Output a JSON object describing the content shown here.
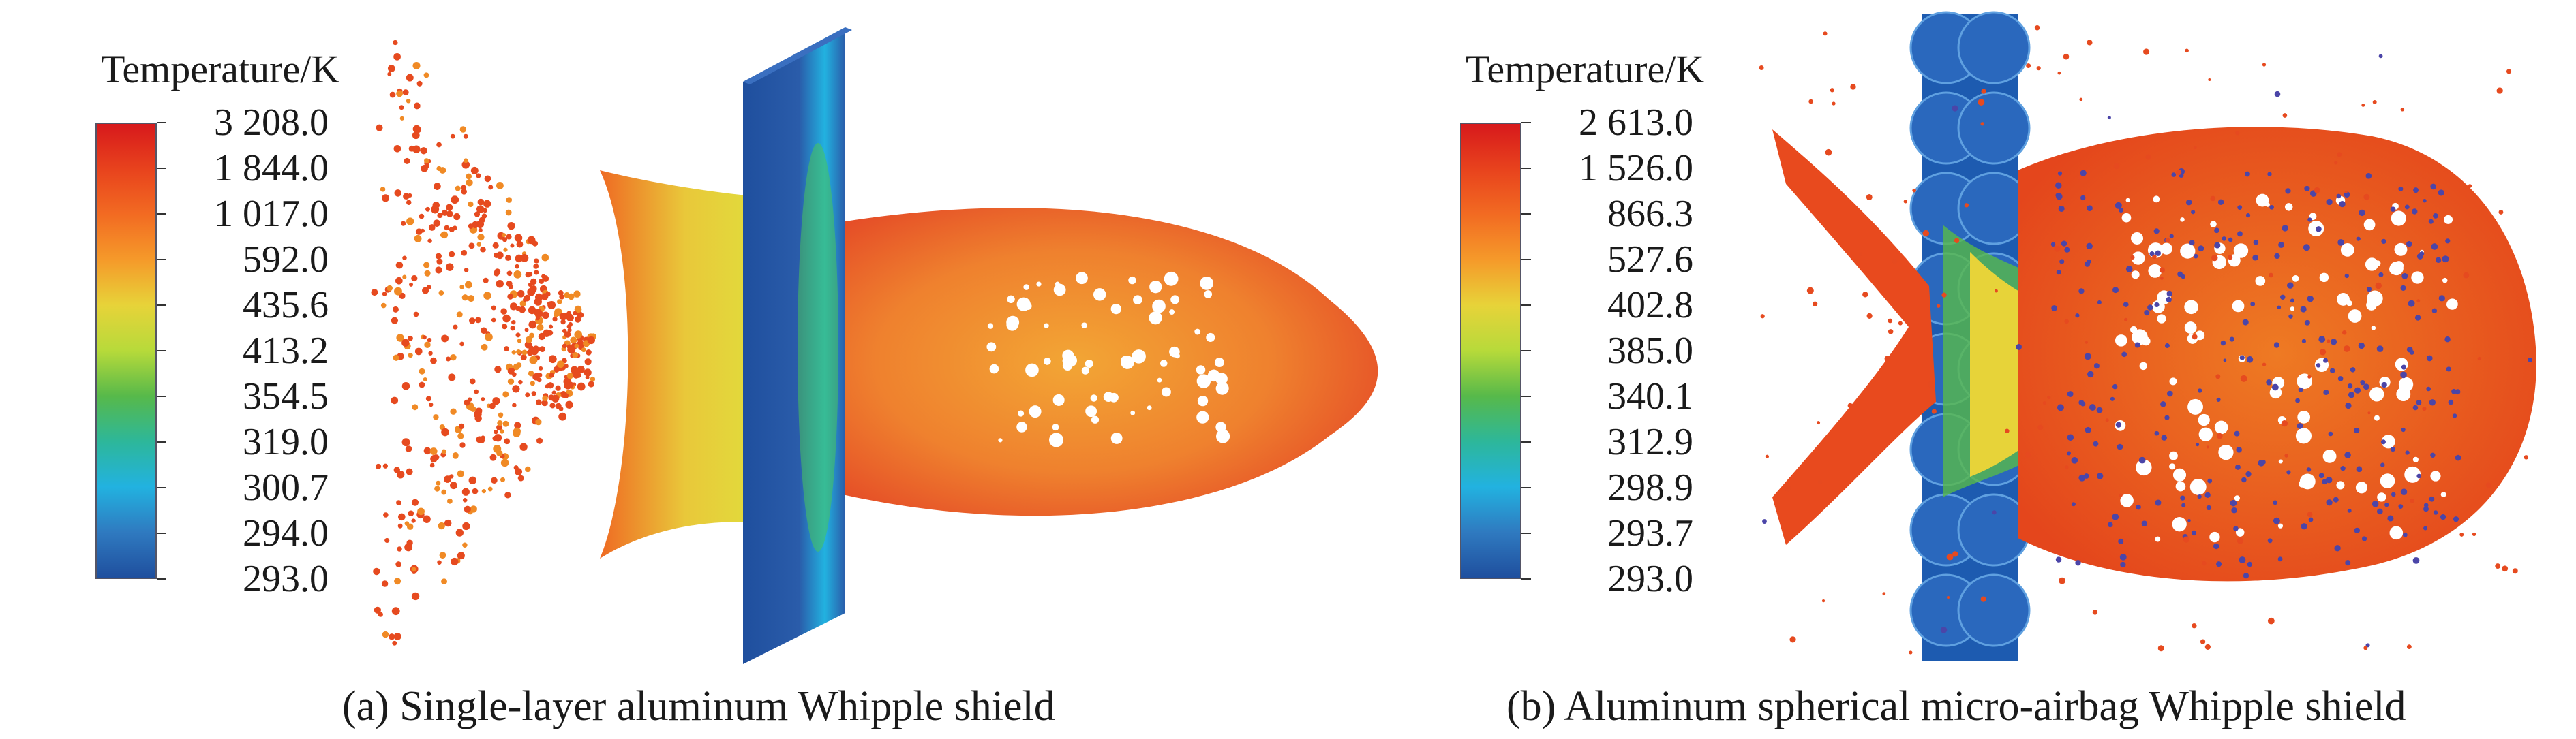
{
  "colors": {
    "scale": [
      "#d7191c",
      "#e8431d",
      "#f26b22",
      "#f59a2a",
      "#e7d339",
      "#b7da3a",
      "#57b94a",
      "#2db79a",
      "#22b2e0",
      "#2f7ac0",
      "#1f4f9e"
    ],
    "shield": "#2a5caa",
    "debris_hot": "#e64a1f",
    "debris_warm": "#f08a25",
    "debris_mid": "#e3cf3a",
    "airbag": "#1d5bb0",
    "marker": "#4b45a8"
  },
  "panel_a": {
    "legend_title": "Temperature/K",
    "legend_values": [
      "3 208.0",
      "1 844.0",
      "1 017.0",
      "592.0",
      "435.6",
      "413.2",
      "354.5",
      "319.0",
      "300.7",
      "294.0",
      "293.0"
    ],
    "caption": "(a) Single-layer aluminum Whipple shield"
  },
  "panel_b": {
    "legend_title": "Temperature/K",
    "legend_values": [
      "2 613.0",
      "1 526.0",
      "866.3",
      "527.6",
      "402.8",
      "385.0",
      "340.1",
      "312.9",
      "298.9",
      "293.7",
      "293.0"
    ],
    "caption": "(b) Aluminum spherical micro-airbag Whipple shield"
  }
}
